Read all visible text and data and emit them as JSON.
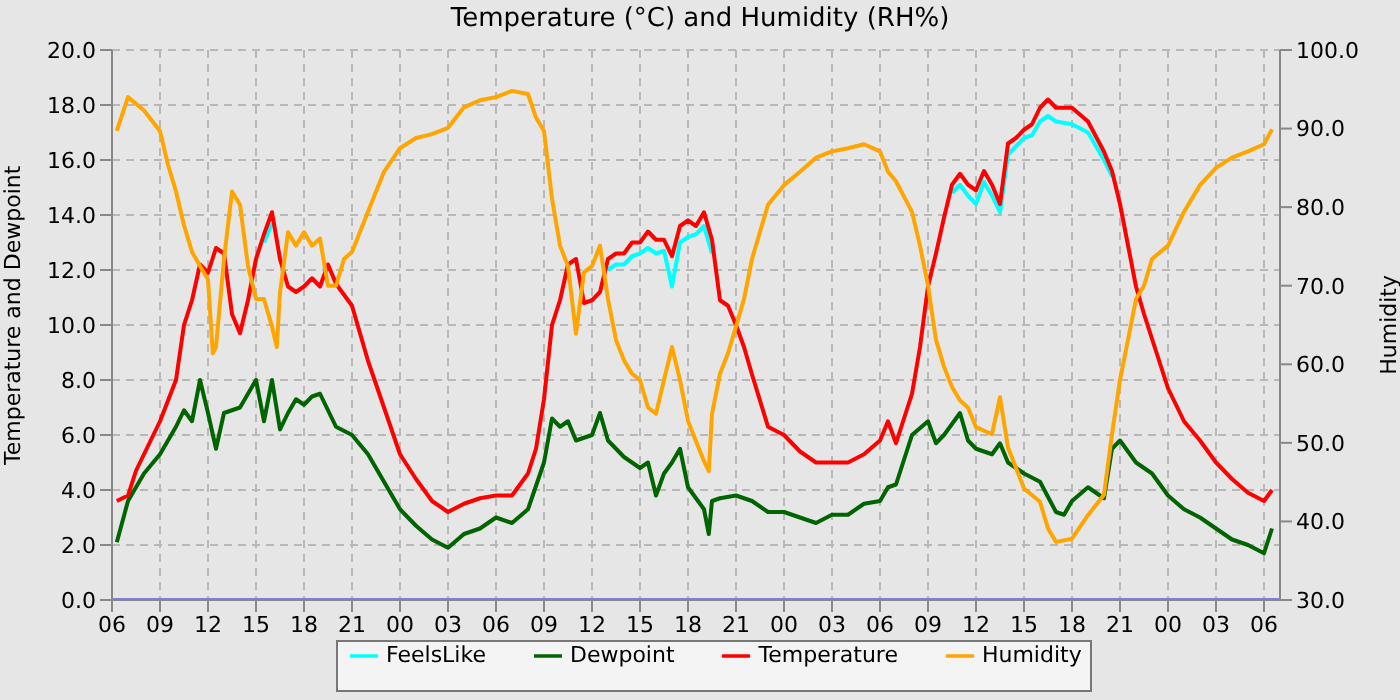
{
  "chart_data": {
    "type": "line",
    "title": "Temperature (°C) and Humidity (RH%)",
    "ylabel": "Temperature and Dewpoint",
    "y2label": "Humidity",
    "xlim": [
      6,
      79
    ],
    "xticks": [
      {
        "value": 6,
        "label": "06"
      },
      {
        "value": 9,
        "label": "09"
      },
      {
        "value": 12,
        "label": "12"
      },
      {
        "value": 15,
        "label": "15"
      },
      {
        "value": 18,
        "label": "18"
      },
      {
        "value": 21,
        "label": "21"
      },
      {
        "value": 24,
        "label": "00"
      },
      {
        "value": 27,
        "label": "03"
      },
      {
        "value": 30,
        "label": "06"
      },
      {
        "value": 33,
        "label": "09"
      },
      {
        "value": 36,
        "label": "12"
      },
      {
        "value": 39,
        "label": "15"
      },
      {
        "value": 42,
        "label": "18"
      },
      {
        "value": 45,
        "label": "21"
      },
      {
        "value": 48,
        "label": "00"
      },
      {
        "value": 51,
        "label": "03"
      },
      {
        "value": 54,
        "label": "06"
      },
      {
        "value": 57,
        "label": "09"
      },
      {
        "value": 60,
        "label": "12"
      },
      {
        "value": 63,
        "label": "15"
      },
      {
        "value": 66,
        "label": "18"
      },
      {
        "value": 69,
        "label": "21"
      },
      {
        "value": 72,
        "label": "00"
      },
      {
        "value": 75,
        "label": "03"
      },
      {
        "value": 78,
        "label": "06"
      }
    ],
    "ylim": [
      0,
      20
    ],
    "yticks": [
      {
        "value": 0,
        "label": "0.0"
      },
      {
        "value": 2,
        "label": "2.0"
      },
      {
        "value": 4,
        "label": "4.0"
      },
      {
        "value": 6,
        "label": "6.0"
      },
      {
        "value": 8,
        "label": "8.0"
      },
      {
        "value": 10,
        "label": "10.0"
      },
      {
        "value": 12,
        "label": "12.0"
      },
      {
        "value": 14,
        "label": "14.0"
      },
      {
        "value": 16,
        "label": "16.0"
      },
      {
        "value": 18,
        "label": "18.0"
      },
      {
        "value": 20,
        "label": "20.0"
      }
    ],
    "y2lim": [
      30,
      100
    ],
    "y2ticks": [
      {
        "value": 30,
        "label": "30.0"
      },
      {
        "value": 40,
        "label": "40.0"
      },
      {
        "value": 50,
        "label": "50.0"
      },
      {
        "value": 60,
        "label": "60.0"
      },
      {
        "value": 70,
        "label": "70.0"
      },
      {
        "value": 80,
        "label": "80.0"
      },
      {
        "value": 90,
        "label": "90.0"
      },
      {
        "value": 100,
        "label": "100.0"
      }
    ],
    "grid": true,
    "legend": "bottom",
    "marker": "none",
    "line_style": "solid",
    "series": [
      {
        "name": "FeelsLike",
        "color": "#00ffff",
        "x": [
          15.5,
          16,
          16.5,
          37,
          37.5,
          38,
          38.5,
          39,
          39.5,
          40,
          40.5,
          41,
          41.5,
          42,
          42.5,
          43,
          43.5,
          44,
          58.5,
          59,
          59.5,
          60,
          60.5,
          61,
          61.5,
          62,
          62.5,
          63,
          63.5,
          64,
          64.5,
          65,
          66,
          67,
          68,
          68.5
        ],
        "values": [
          13.0,
          13.7,
          null,
          12.0,
          12.2,
          12.2,
          12.5,
          12.6,
          12.8,
          12.6,
          12.7,
          11.4,
          13.0,
          13.2,
          13.3,
          13.6,
          12.6,
          null,
          14.8,
          15.1,
          14.7,
          14.4,
          15.2,
          14.7,
          14.1,
          16.2,
          16.5,
          16.8,
          16.9,
          17.4,
          17.6,
          17.4,
          17.3,
          17.0,
          16.0,
          15.4
        ]
      },
      {
        "name": "Dewpoint",
        "color": "#006400",
        "x": [
          6.3,
          7,
          8,
          9,
          10,
          10.5,
          11,
          11.5,
          12,
          12.5,
          13,
          14,
          14.5,
          15,
          15.5,
          16,
          16.5,
          17,
          17.5,
          18,
          18.5,
          19,
          20,
          21,
          22,
          23,
          24,
          25,
          26,
          27,
          28,
          29,
          30,
          31,
          32,
          33,
          33.5,
          34,
          34.5,
          35,
          36,
          36.5,
          37,
          38,
          38.5,
          39,
          39.5,
          40,
          40.5,
          41,
          41.5,
          42,
          42.5,
          43,
          43.3,
          43.5,
          44,
          45,
          46,
          47,
          48,
          49,
          50,
          51,
          52,
          53,
          54,
          54.5,
          55,
          56,
          57,
          57.5,
          58,
          59,
          59.5,
          60,
          61,
          61.5,
          62,
          63,
          64,
          65,
          65.5,
          66,
          67,
          68,
          68.5,
          69,
          70,
          71,
          72,
          73,
          74,
          75,
          76,
          77,
          78,
          78.5
        ],
        "values": [
          2.1,
          3.6,
          4.6,
          5.3,
          6.3,
          6.9,
          6.5,
          8.0,
          6.8,
          5.5,
          6.8,
          7.0,
          7.5,
          8.0,
          6.5,
          8.0,
          6.2,
          6.8,
          7.3,
          7.1,
          7.4,
          7.5,
          6.3,
          6.0,
          5.3,
          4.3,
          3.3,
          2.7,
          2.2,
          1.9,
          2.4,
          2.6,
          3.0,
          2.8,
          3.3,
          5.0,
          6.6,
          6.3,
          6.5,
          5.8,
          6.0,
          6.8,
          5.8,
          5.2,
          5.0,
          4.8,
          5.0,
          3.8,
          4.6,
          5.0,
          5.5,
          4.1,
          3.7,
          3.3,
          2.4,
          3.6,
          3.7,
          3.8,
          3.6,
          3.2,
          3.2,
          3.0,
          2.8,
          3.1,
          3.1,
          3.5,
          3.6,
          4.1,
          4.2,
          6.0,
          6.5,
          5.7,
          6.0,
          6.8,
          5.8,
          5.5,
          5.3,
          5.7,
          5.0,
          4.6,
          4.3,
          3.2,
          3.1,
          3.6,
          4.1,
          3.7,
          5.5,
          5.8,
          5.0,
          4.6,
          3.8,
          3.3,
          3.0,
          2.6,
          2.2,
          2.0,
          1.7,
          2.6
        ]
      },
      {
        "name": "Temperature",
        "color": "#ff0000",
        "x": [
          6.3,
          7,
          7.5,
          8,
          9,
          10,
          10.5,
          11,
          11.5,
          12,
          12.5,
          13,
          13.5,
          14,
          14.5,
          15,
          15.5,
          16,
          16.5,
          17,
          17.5,
          18,
          18.5,
          19,
          19.5,
          20,
          21,
          22,
          23,
          24,
          25,
          26,
          27,
          28,
          29,
          30,
          31,
          32,
          32.5,
          33,
          33.5,
          34,
          34.5,
          35,
          35.5,
          36,
          36.5,
          37,
          37.5,
          38,
          38.5,
          39,
          39.5,
          40,
          40.5,
          41,
          41.5,
          42,
          42.5,
          43,
          43.5,
          44,
          44.5,
          45,
          45.5,
          46,
          47,
          48,
          49,
          50,
          51,
          52,
          53,
          54,
          54.5,
          55,
          56,
          56.5,
          57,
          57.5,
          58,
          58.5,
          59,
          59.5,
          60,
          60.5,
          61,
          61.5,
          62,
          62.5,
          63,
          63.5,
          64,
          64.5,
          65,
          66,
          67,
          68,
          68.5,
          69,
          69.5,
          70,
          70.5,
          71,
          72,
          73,
          74,
          75,
          76,
          77,
          78,
          78.5
        ],
        "values": [
          3.6,
          3.8,
          4.7,
          5.3,
          6.5,
          8.0,
          10.0,
          10.9,
          12.2,
          11.9,
          12.8,
          12.6,
          10.4,
          9.7,
          10.9,
          12.4,
          13.3,
          14.1,
          12.4,
          11.4,
          11.2,
          11.4,
          11.7,
          11.4,
          12.2,
          11.5,
          10.7,
          8.7,
          7.0,
          5.3,
          4.4,
          3.6,
          3.2,
          3.5,
          3.7,
          3.8,
          3.8,
          4.6,
          5.5,
          7.3,
          10.0,
          10.9,
          12.2,
          12.4,
          10.8,
          10.9,
          11.2,
          12.4,
          12.6,
          12.6,
          13.0,
          13.0,
          13.4,
          13.1,
          13.1,
          12.5,
          13.6,
          13.8,
          13.6,
          14.1,
          13.1,
          10.9,
          10.7,
          10.0,
          9.2,
          8.2,
          6.3,
          6.0,
          5.4,
          5.0,
          5.0,
          5.0,
          5.3,
          5.8,
          6.5,
          5.7,
          7.5,
          9.2,
          11.4,
          12.6,
          13.9,
          15.1,
          15.5,
          15.1,
          14.9,
          15.6,
          15.1,
          14.4,
          16.6,
          16.8,
          17.1,
          17.3,
          17.9,
          18.2,
          17.9,
          17.9,
          17.4,
          16.3,
          15.6,
          14.4,
          12.9,
          11.4,
          10.4,
          9.5,
          7.7,
          6.5,
          5.8,
          5.0,
          4.4,
          3.9,
          3.6,
          4.0
        ]
      },
      {
        "name": "Humidity",
        "color": "#ffa500",
        "axis": "y2",
        "x": [
          6.3,
          7,
          8,
          9,
          9.5,
          10,
          10.5,
          11,
          11.5,
          12,
          12.3,
          12.5,
          13,
          13.5,
          14,
          14.5,
          15,
          15.5,
          16,
          16.3,
          16.5,
          17,
          17.5,
          18,
          18.5,
          19,
          19.5,
          20,
          20.5,
          21,
          22,
          23,
          24,
          25,
          26,
          27,
          28,
          29,
          30,
          31,
          32,
          32.5,
          33,
          33.5,
          34,
          34.5,
          35,
          35.5,
          36,
          36.5,
          37,
          37.5,
          38,
          38.5,
          39,
          39.5,
          40,
          40.5,
          41,
          41.5,
          42,
          42.5,
          43,
          43.3,
          43.5,
          44,
          44.5,
          45,
          45.5,
          46,
          47,
          48,
          49,
          50,
          51,
          52,
          53,
          54,
          54.5,
          55,
          56,
          56.5,
          57,
          57.5,
          58,
          58.5,
          59,
          59.5,
          60,
          61,
          61.5,
          62,
          63,
          64,
          64.5,
          65,
          66,
          67,
          68,
          68.5,
          69,
          69.5,
          70,
          70.5,
          71,
          72,
          73,
          74,
          75,
          76,
          77,
          78,
          78.5
        ],
        "values": [
          89.7,
          94.0,
          92.3,
          89.7,
          85.4,
          82.0,
          77.7,
          74.3,
          72.5,
          70.8,
          61.4,
          62.2,
          73.4,
          82.0,
          80.3,
          72.5,
          68.3,
          68.3,
          64.8,
          62.2,
          69.1,
          76.8,
          75.1,
          76.8,
          75.1,
          76.0,
          70.0,
          70.0,
          73.4,
          74.3,
          79.4,
          84.5,
          87.5,
          88.8,
          89.3,
          90.1,
          92.7,
          93.6,
          94.0,
          94.8,
          94.4,
          91.4,
          89.7,
          81.1,
          75.1,
          72.5,
          63.9,
          71.7,
          72.5,
          75.1,
          68.3,
          63.1,
          60.5,
          58.8,
          58.0,
          54.5,
          53.7,
          58.0,
          62.2,
          58.0,
          52.8,
          50.2,
          47.7,
          46.4,
          53.7,
          58.8,
          61.4,
          64.8,
          68.3,
          73.4,
          80.3,
          82.8,
          84.5,
          86.3,
          87.1,
          87.5,
          88.0,
          87.1,
          84.5,
          83.3,
          79.4,
          75.1,
          70.0,
          63.1,
          59.7,
          57.1,
          55.4,
          54.5,
          52.0,
          51.1,
          55.8,
          49.4,
          44.2,
          42.5,
          39.1,
          37.4,
          37.8,
          40.8,
          43.4,
          51.1,
          58.0,
          63.1,
          68.3,
          70.0,
          73.4,
          75.1,
          79.4,
          82.8,
          85.0,
          86.3,
          87.1,
          88.0,
          89.9
        ]
      },
      {
        "color": "#8080e0",
        "x": [
          6,
          79
        ],
        "values": [
          0,
          0
        ]
      }
    ]
  }
}
